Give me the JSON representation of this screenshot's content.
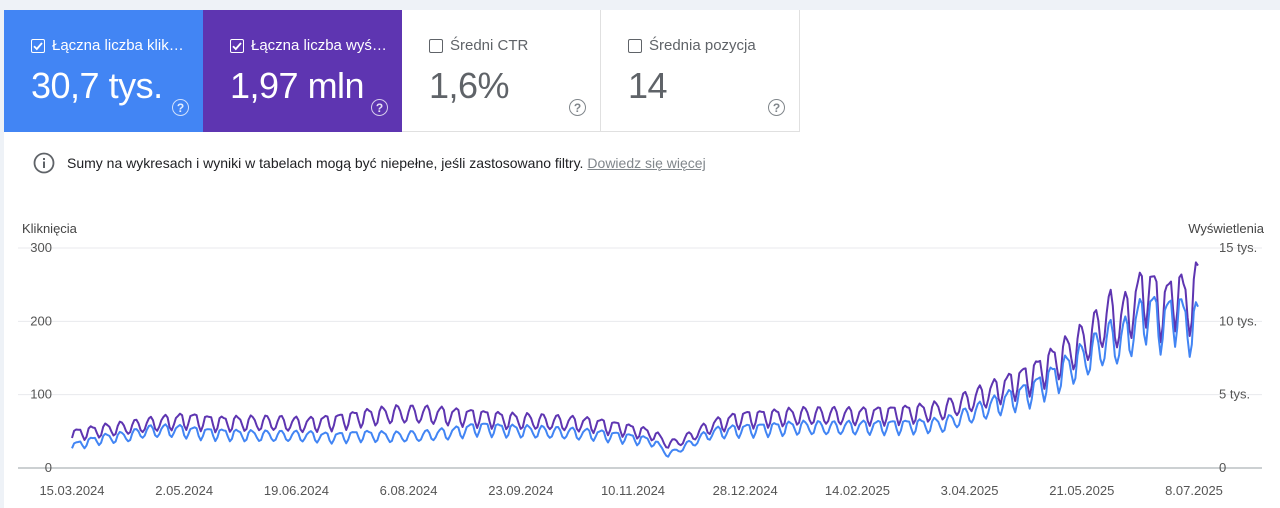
{
  "metrics": [
    {
      "label": "Łączna liczba klik…",
      "value": "30,7 tys.",
      "checked": true,
      "color": "#4285f4"
    },
    {
      "label": "Łączna liczba wyś…",
      "value": "1,97 mln",
      "checked": true,
      "color": "#5e35b1"
    },
    {
      "label": "Średni CTR",
      "value": "1,6%",
      "checked": false
    },
    {
      "label": "Średnia pozycja",
      "value": "14",
      "checked": false
    }
  ],
  "help_icon": "?",
  "notice": {
    "text": "Sumy na wykresach i wyniki w tabelach mogą być niepełne, jeśli zastosowano filtry.",
    "link": "Dowiedz się więcej"
  },
  "chart_data": {
    "type": "line",
    "ylabel_left": "Kliknięcia",
    "ylabel_right": "Wyświetlenia",
    "yticks_left": [
      "0",
      "100",
      "200",
      "300"
    ],
    "yticks_right": [
      "0",
      "5 tys.",
      "10 tys.",
      "15 tys."
    ],
    "ylim_left": [
      0,
      300
    ],
    "ylim_right": [
      0,
      15000
    ],
    "xticks": [
      "15.03.2024",
      "2.05.2024",
      "19.06.2024",
      "6.08.2024",
      "23.09.2024",
      "10.11.2024",
      "28.12.2024",
      "14.02.2025",
      "3.04.2025",
      "21.05.2025",
      "8.07.2025"
    ],
    "x_start": "15.03.2024",
    "x_end": "10.07.2025",
    "grid": true,
    "series": [
      {
        "name": "Łączna liczba kliknięć",
        "axis": "left",
        "color": "#4285f4",
        "keypoints": [
          [
            0,
            30
          ],
          [
            14,
            40
          ],
          [
            28,
            44
          ],
          [
            35,
            50
          ],
          [
            49,
            52
          ],
          [
            63,
            48
          ],
          [
            84,
            45
          ],
          [
            98,
            44
          ],
          [
            112,
            44
          ],
          [
            126,
            42
          ],
          [
            140,
            45
          ],
          [
            154,
            43
          ],
          [
            168,
            44
          ],
          [
            182,
            48
          ],
          [
            196,
            55
          ],
          [
            210,
            52
          ],
          [
            224,
            50
          ],
          [
            238,
            48
          ],
          [
            252,
            46
          ],
          [
            266,
            42
          ],
          [
            280,
            36
          ],
          [
            287,
            18
          ],
          [
            294,
            28
          ],
          [
            308,
            48
          ],
          [
            322,
            52
          ],
          [
            336,
            54
          ],
          [
            350,
            56
          ],
          [
            364,
            55
          ],
          [
            378,
            56
          ],
          [
            392,
            57
          ],
          [
            406,
            58
          ],
          [
            420,
            60
          ],
          [
            434,
            75
          ],
          [
            448,
            90
          ],
          [
            462,
            105
          ],
          [
            476,
            130
          ],
          [
            490,
            155
          ],
          [
            500,
            175
          ],
          [
            504,
            170
          ],
          [
            511,
            190
          ],
          [
            518,
            215
          ],
          [
            525,
            195
          ],
          [
            532,
            215
          ],
          [
            537,
            190
          ],
          [
            542,
            200
          ]
        ]
      },
      {
        "name": "Łączna liczba wyświetleń",
        "axis": "right",
        "color": "#5e35b1",
        "keypoints": [
          [
            0,
            2300
          ],
          [
            14,
            2600
          ],
          [
            28,
            2800
          ],
          [
            42,
            3100
          ],
          [
            56,
            3300
          ],
          [
            70,
            3100
          ],
          [
            84,
            3100
          ],
          [
            98,
            3100
          ],
          [
            112,
            3000
          ],
          [
            126,
            3200
          ],
          [
            140,
            3500
          ],
          [
            154,
            3700
          ],
          [
            168,
            3700
          ],
          [
            182,
            3600
          ],
          [
            196,
            3500
          ],
          [
            210,
            3300
          ],
          [
            224,
            3200
          ],
          [
            238,
            3100
          ],
          [
            252,
            3000
          ],
          [
            266,
            2700
          ],
          [
            280,
            2300
          ],
          [
            287,
            1600
          ],
          [
            294,
            1900
          ],
          [
            308,
            2900
          ],
          [
            322,
            3400
          ],
          [
            336,
            3500
          ],
          [
            350,
            3600
          ],
          [
            364,
            3600
          ],
          [
            378,
            3600
          ],
          [
            392,
            3700
          ],
          [
            406,
            3800
          ],
          [
            420,
            4000
          ],
          [
            434,
            4700
          ],
          [
            448,
            5500
          ],
          [
            462,
            6300
          ],
          [
            476,
            7600
          ],
          [
            490,
            8900
          ],
          [
            500,
            10500
          ],
          [
            504,
            9800
          ],
          [
            511,
            11200
          ],
          [
            518,
            12300
          ],
          [
            525,
            10800
          ],
          [
            532,
            12100
          ],
          [
            537,
            11000
          ],
          [
            542,
            12500
          ]
        ]
      }
    ]
  }
}
